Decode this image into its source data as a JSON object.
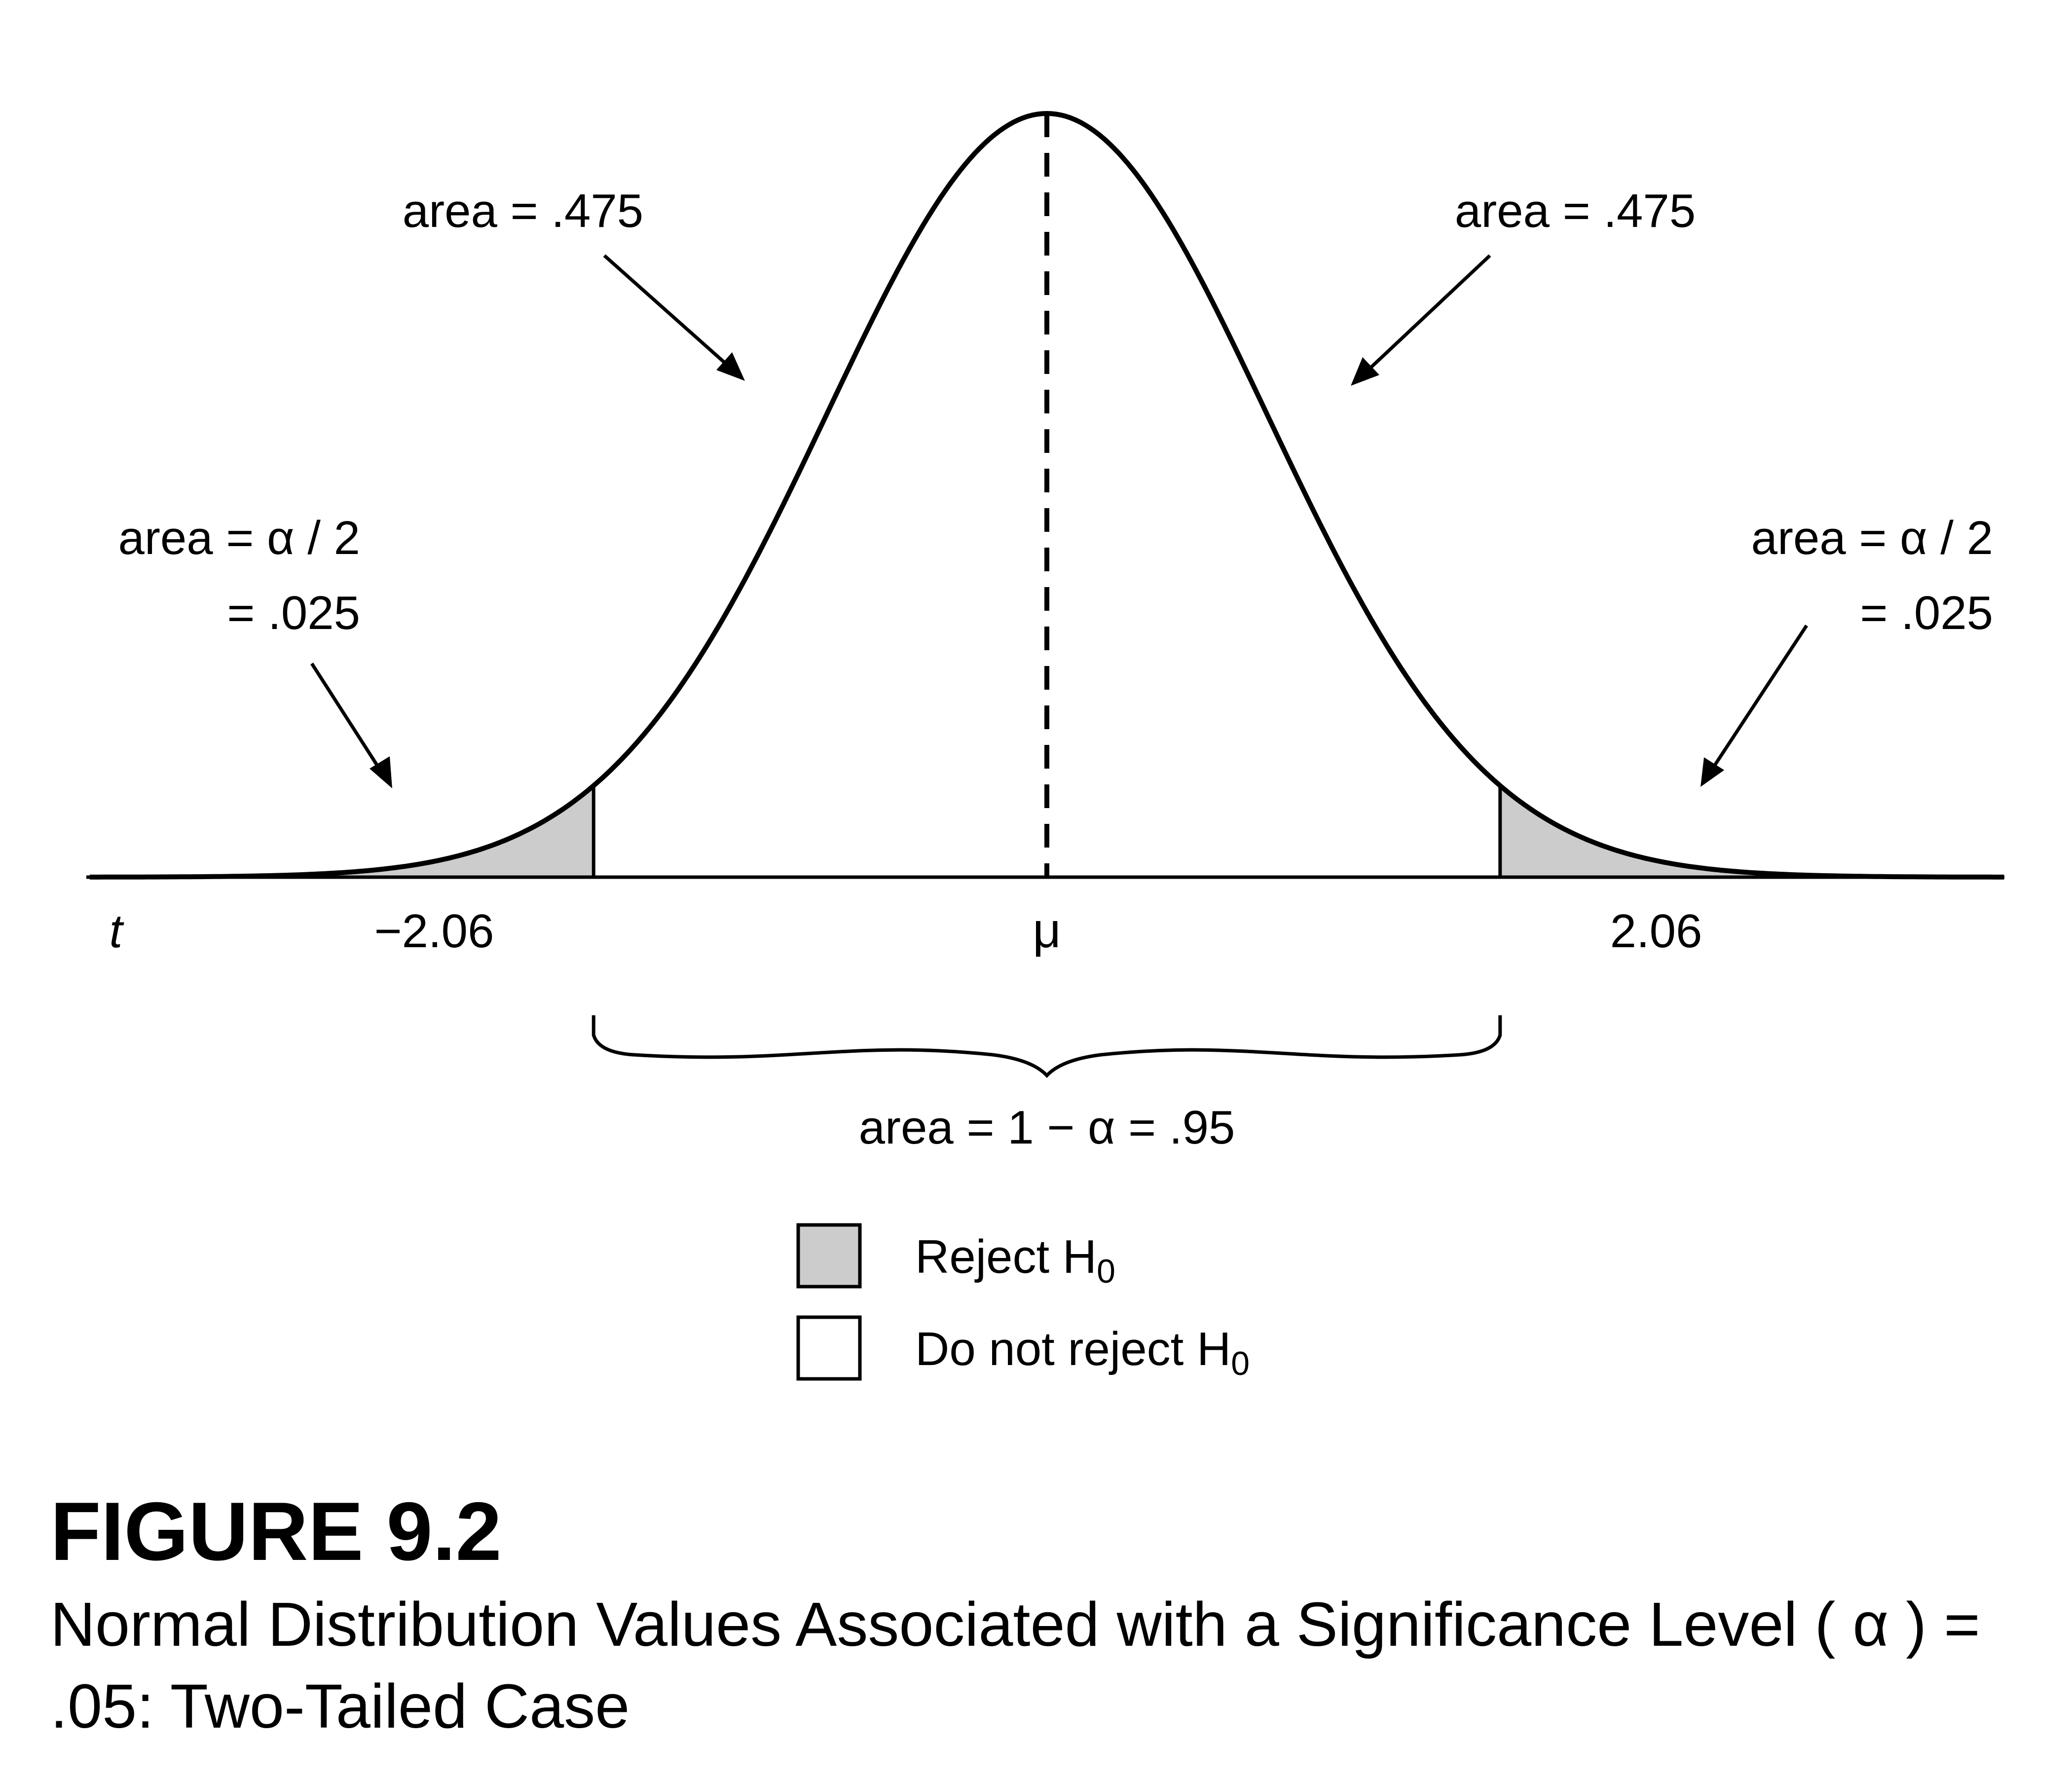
{
  "figure": {
    "number_label": "FIGURE 9.2",
    "caption": "Normal Distribution Values Associated with a Significance Level ( α ) = .05: Two-Tailed Case"
  },
  "diagram": {
    "axis_variable": "t",
    "center_label": "μ",
    "left_critical_label": "−2.06",
    "right_critical_label": "2.06",
    "critical_value": 2.06,
    "inner_left_label": "area = .475",
    "inner_right_label": "area = .475",
    "tail_left_line1": "area = α / 2",
    "tail_left_line2": "= .025",
    "tail_right_line1": "area = α / 2",
    "tail_right_line2": "= .025",
    "middle_area_label": "area = 1 − α = .95",
    "colors": {
      "shaded": "#cccccc",
      "stroke": "#000000",
      "background": "#ffffff"
    }
  },
  "legend": {
    "items": [
      {
        "label": "Reject H",
        "sub": "0",
        "fill": "#cccccc"
      },
      {
        "label": "Do not reject H",
        "sub": "0",
        "fill": "#ffffff"
      }
    ]
  }
}
